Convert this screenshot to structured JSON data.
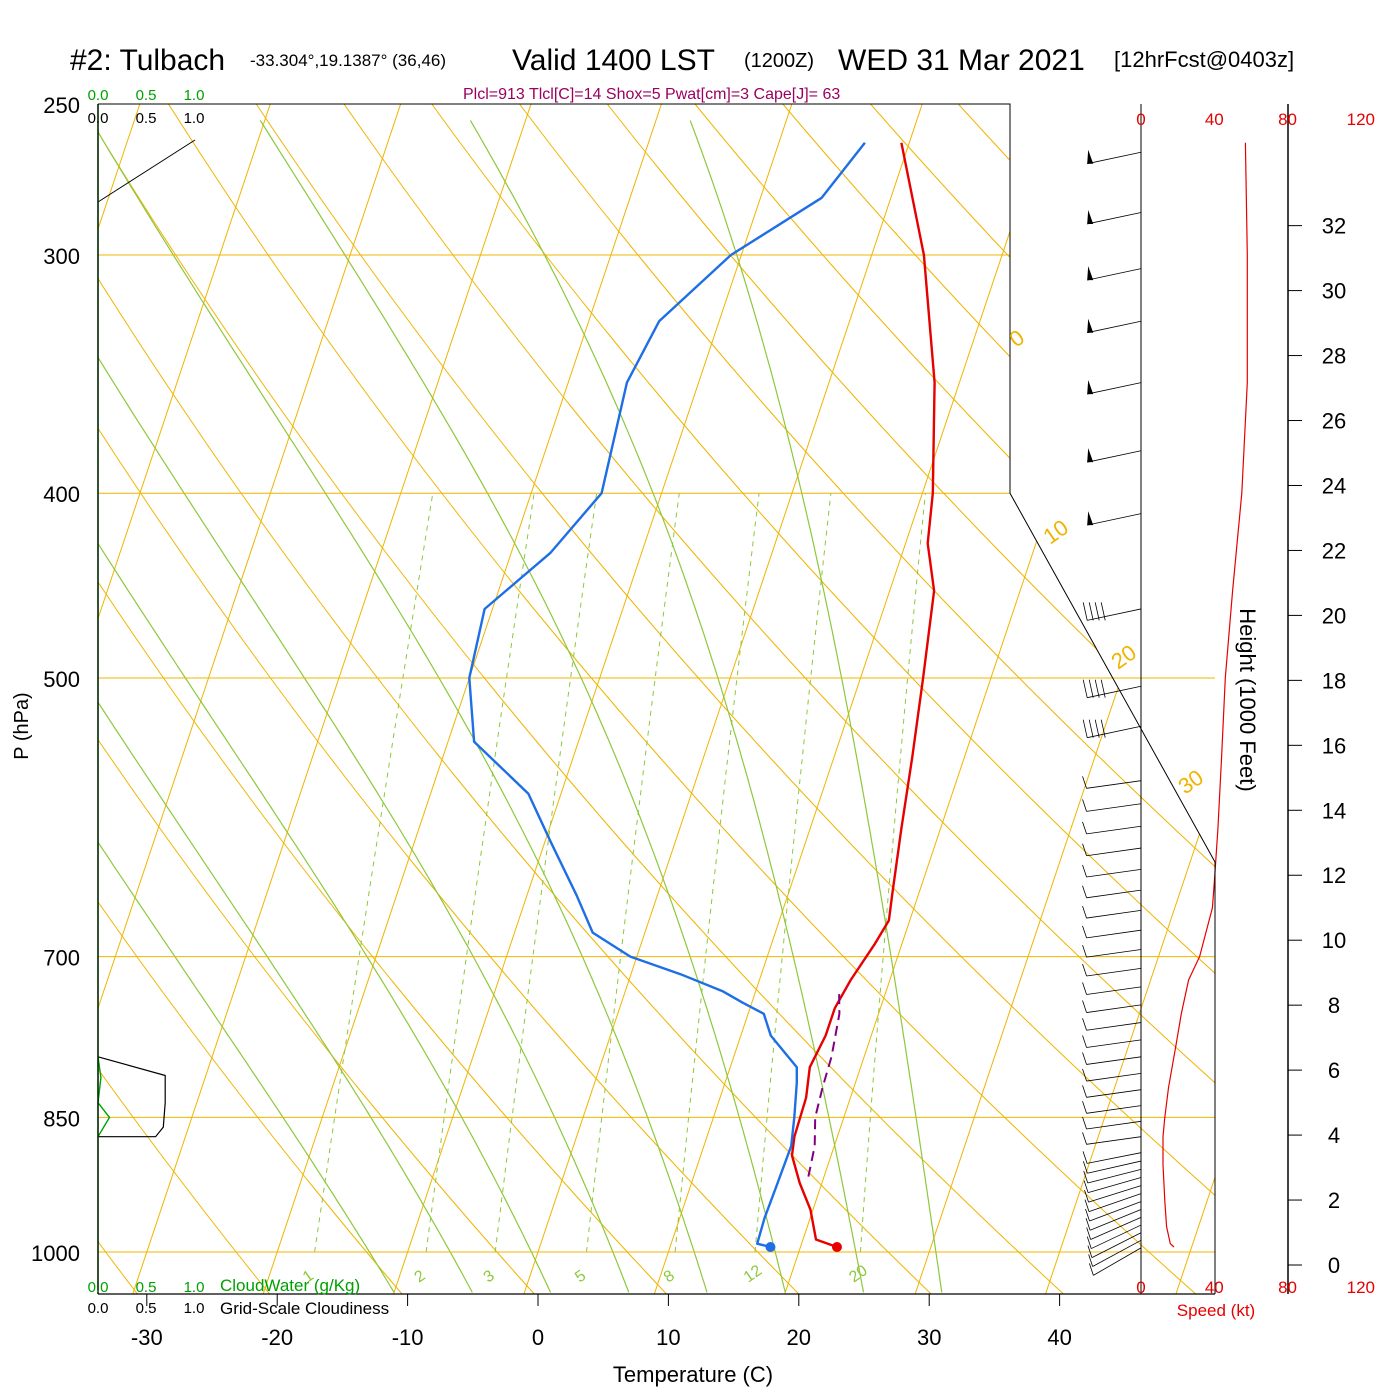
{
  "header": {
    "station": "#2: Tulbach",
    "location": "-33.304°,19.1387° (36,46)",
    "valid": "Valid 1400 LST",
    "utc": "(1200Z)",
    "date": "WED 31 Mar 2021",
    "forecast": "[12hrFcst@0403z]",
    "indices": "Plcl=913 Tlcl[C]=14 Shox=5 Pwat[cm]=3 Cape[J]= 63"
  },
  "colors": {
    "isobar": "#f0b400",
    "dry_adiabat": "#f0b400",
    "moist_adiabat": "#8cc83c",
    "mixing_ratio": "#8cc83c",
    "temperature": "#e60000",
    "dewpoint": "#1e6ee6",
    "parcel": "#800080",
    "cloudwater": "#00a000",
    "speed": "#e60000",
    "black": "#000000"
  },
  "chart_data": {
    "type": "line",
    "subtype": "skew-T log-P sounding",
    "xlabel": "Temperature (C)",
    "ylabel": "P (hPa)",
    "y2label": "Height (1000 Feet)",
    "x_ticks": [
      "-30",
      "-20",
      "-10",
      "0",
      "10",
      "20",
      "30",
      "40"
    ],
    "x_tick_values": [
      -30,
      -20,
      -10,
      0,
      10,
      20,
      30,
      40
    ],
    "p_ticks": [
      "250",
      "300",
      "400",
      "500",
      "700",
      "850",
      "1000"
    ],
    "p_tick_values": [
      250,
      300,
      400,
      500,
      700,
      850,
      1000
    ],
    "height_ticks": [
      "0",
      "2",
      "4",
      "6",
      "8",
      "10",
      "12",
      "14",
      "16",
      "18",
      "20",
      "22",
      "24",
      "26",
      "28",
      "30",
      "32"
    ],
    "height_tick_values": [
      0,
      2,
      4,
      6,
      8,
      10,
      12,
      14,
      16,
      18,
      20,
      22,
      24,
      26,
      28,
      30,
      32
    ],
    "isotherm_labels": [
      {
        "text": "10",
        "t": 10
      },
      {
        "text": "0",
        "t": 0
      },
      {
        "text": "-10",
        "t": -10
      },
      {
        "text": "-20",
        "t": -20
      },
      {
        "text": "-30",
        "t": -30
      }
    ],
    "temp_label_right": [
      {
        "text": "0",
        "t": 0
      },
      {
        "text": "10",
        "t": 10
      },
      {
        "text": "20",
        "t": 20
      },
      {
        "text": "30",
        "t": 30
      }
    ],
    "mixing_ratio_labels": [
      "1",
      "2",
      "3",
      "5",
      "8",
      "12",
      "20"
    ],
    "mixing_ratio_values": [
      1,
      2,
      3,
      5,
      8,
      12,
      20
    ],
    "series": [
      {
        "name": "temperature",
        "points": [
          [
            22.8,
            994
          ],
          [
            21.0,
            985
          ],
          [
            19.8,
            950
          ],
          [
            18.3,
            920
          ],
          [
            17.0,
            890
          ],
          [
            16.7,
            870
          ],
          [
            16.6,
            830
          ],
          [
            16.1,
            800
          ],
          [
            16.5,
            770
          ],
          [
            16.5,
            745
          ],
          [
            17.0,
            720
          ],
          [
            17.9,
            690
          ],
          [
            18.4,
            670
          ],
          [
            18.0,
            650
          ],
          [
            17.0,
            600
          ],
          [
            16.0,
            550
          ],
          [
            14.8,
            500
          ],
          [
            13.4,
            450
          ],
          [
            11.7,
            425
          ],
          [
            10.8,
            400
          ],
          [
            8.1,
            350
          ],
          [
            4.0,
            300
          ],
          [
            -0.6,
            262
          ]
        ]
      },
      {
        "name": "dewpoint",
        "points": [
          [
            17.7,
            994
          ],
          [
            16.6,
            990
          ],
          [
            16.5,
            960
          ],
          [
            16.6,
            920
          ],
          [
            16.7,
            880
          ],
          [
            16.2,
            850
          ],
          [
            15.5,
            815
          ],
          [
            15.1,
            800
          ],
          [
            12.3,
            770
          ],
          [
            11.2,
            750
          ],
          [
            9.3,
            740
          ],
          [
            7.5,
            730
          ],
          [
            3.8,
            715
          ],
          [
            -0.5,
            700
          ],
          [
            -4.0,
            680
          ],
          [
            -6.2,
            650
          ],
          [
            -9.5,
            610
          ],
          [
            -12.5,
            575
          ],
          [
            -18.0,
            540
          ],
          [
            -20.0,
            500
          ],
          [
            -20.6,
            460
          ],
          [
            -17.0,
            430
          ],
          [
            -14.6,
            400
          ],
          [
            -15.5,
            350
          ],
          [
            -14.6,
            325
          ],
          [
            -10.8,
            300
          ],
          [
            -5.3,
            280
          ],
          [
            -3.4,
            262
          ]
        ]
      },
      {
        "name": "parcel",
        "points": [
          [
            18.8,
            913
          ],
          [
            18.5,
            880
          ],
          [
            17.8,
            850
          ],
          [
            17.6,
            820
          ],
          [
            17.5,
            790
          ],
          [
            17.0,
            750
          ],
          [
            16.4,
            730
          ]
        ]
      }
    ],
    "surface_temperature": 22.8,
    "surface_dewpoint": 17.7,
    "surface_pressure": 994,
    "wind_speed_axis": {
      "label": "Speed (kt)",
      "ticks": [
        "0",
        "40",
        "80",
        "120"
      ],
      "values": [
        0,
        40,
        80,
        120
      ]
    },
    "wind_speed_profile": [
      [
        994,
        18
      ],
      [
        990,
        16
      ],
      [
        970,
        14
      ],
      [
        940,
        13
      ],
      [
        900,
        12
      ],
      [
        870,
        12
      ],
      [
        850,
        13
      ],
      [
        820,
        15
      ],
      [
        780,
        19
      ],
      [
        750,
        22
      ],
      [
        720,
        26
      ],
      [
        700,
        32
      ],
      [
        660,
        39
      ],
      [
        640,
        40
      ],
      [
        600,
        42
      ],
      [
        550,
        44
      ],
      [
        500,
        46
      ],
      [
        450,
        50
      ],
      [
        400,
        55
      ],
      [
        350,
        58
      ],
      [
        300,
        58
      ],
      [
        262,
        57
      ]
    ],
    "cloud_axes": {
      "cloudwater_label": "CloudWater (g/Kg)",
      "cloudiness_label": "Grid-Scale Cloudiness",
      "ticks": [
        "0.0",
        "0.5",
        "1.0"
      ],
      "values": [
        0,
        0.5,
        1
      ]
    },
    "cloudiness_profile": [
      [
        870,
        0.6
      ],
      [
        860,
        0.68
      ],
      [
        835,
        0.7
      ],
      [
        808,
        0.7
      ],
      [
        790,
        0
      ]
    ],
    "cloudwater_profile": [
      [
        870,
        0
      ],
      [
        850,
        0.12
      ],
      [
        835,
        0
      ],
      [
        810,
        0.03
      ],
      [
        790,
        0
      ]
    ]
  }
}
